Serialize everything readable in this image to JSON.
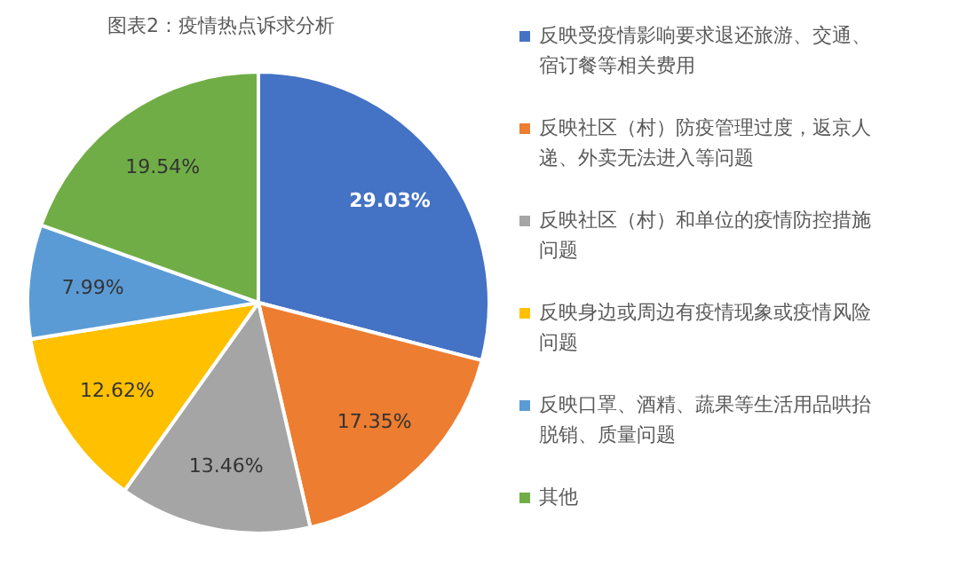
{
  "chart_data": {
    "type": "pie",
    "title": "图表2：疫情热点诉求分析",
    "categories": [
      "反映受疫情影响要求退还旅游、交通、宿订餐等相关费用",
      "反映社区（村）防疫管理过度，返京人递、外卖无法进入等问题",
      "反映社区（村）和单位的疫情防控措施问题",
      "反映身边或周边有疫情现象或疫情风险问题",
      "反映口罩、酒精、蔬果等生活用品哄抬脱销、质量问题",
      "其他"
    ],
    "values": [
      29.03,
      17.35,
      13.46,
      12.62,
      7.99,
      19.54
    ],
    "colors": [
      "#4472c4",
      "#ed7d31",
      "#a5a5a5",
      "#ffc000",
      "#5b9bd5",
      "#70ad47"
    ],
    "value_labels": [
      "29.03%",
      "17.35%",
      "13.46%",
      "12.62%",
      "7.99%",
      "19.54%"
    ],
    "legend": "right"
  }
}
